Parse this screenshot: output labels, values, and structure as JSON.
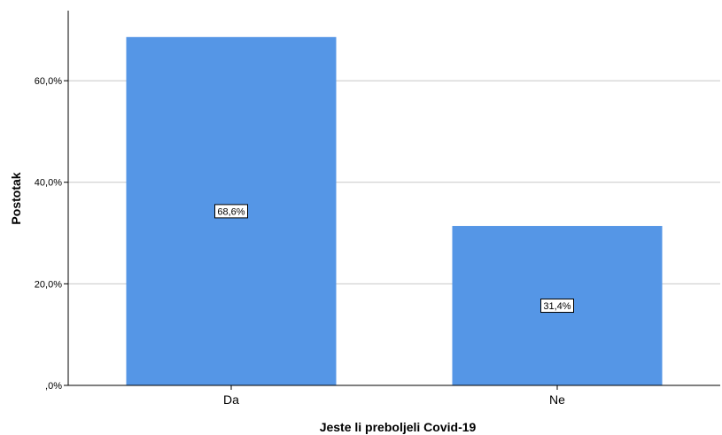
{
  "chart_data": {
    "type": "bar",
    "categories": [
      "Da",
      "Ne"
    ],
    "values": [
      68.6,
      31.4
    ],
    "data_labels": [
      "68,6%",
      "31,4%"
    ],
    "xlabel": "Jeste li preboljeli Covid-19",
    "ylabel": "Postotak",
    "ylim": [
      0,
      73.8
    ],
    "yticks": [
      0,
      20,
      40,
      60
    ],
    "ytick_labels": [
      ",0%",
      "20,0%",
      "40,0%",
      "60,0%"
    ],
    "grid": true,
    "bar_color": "#5596e6"
  }
}
